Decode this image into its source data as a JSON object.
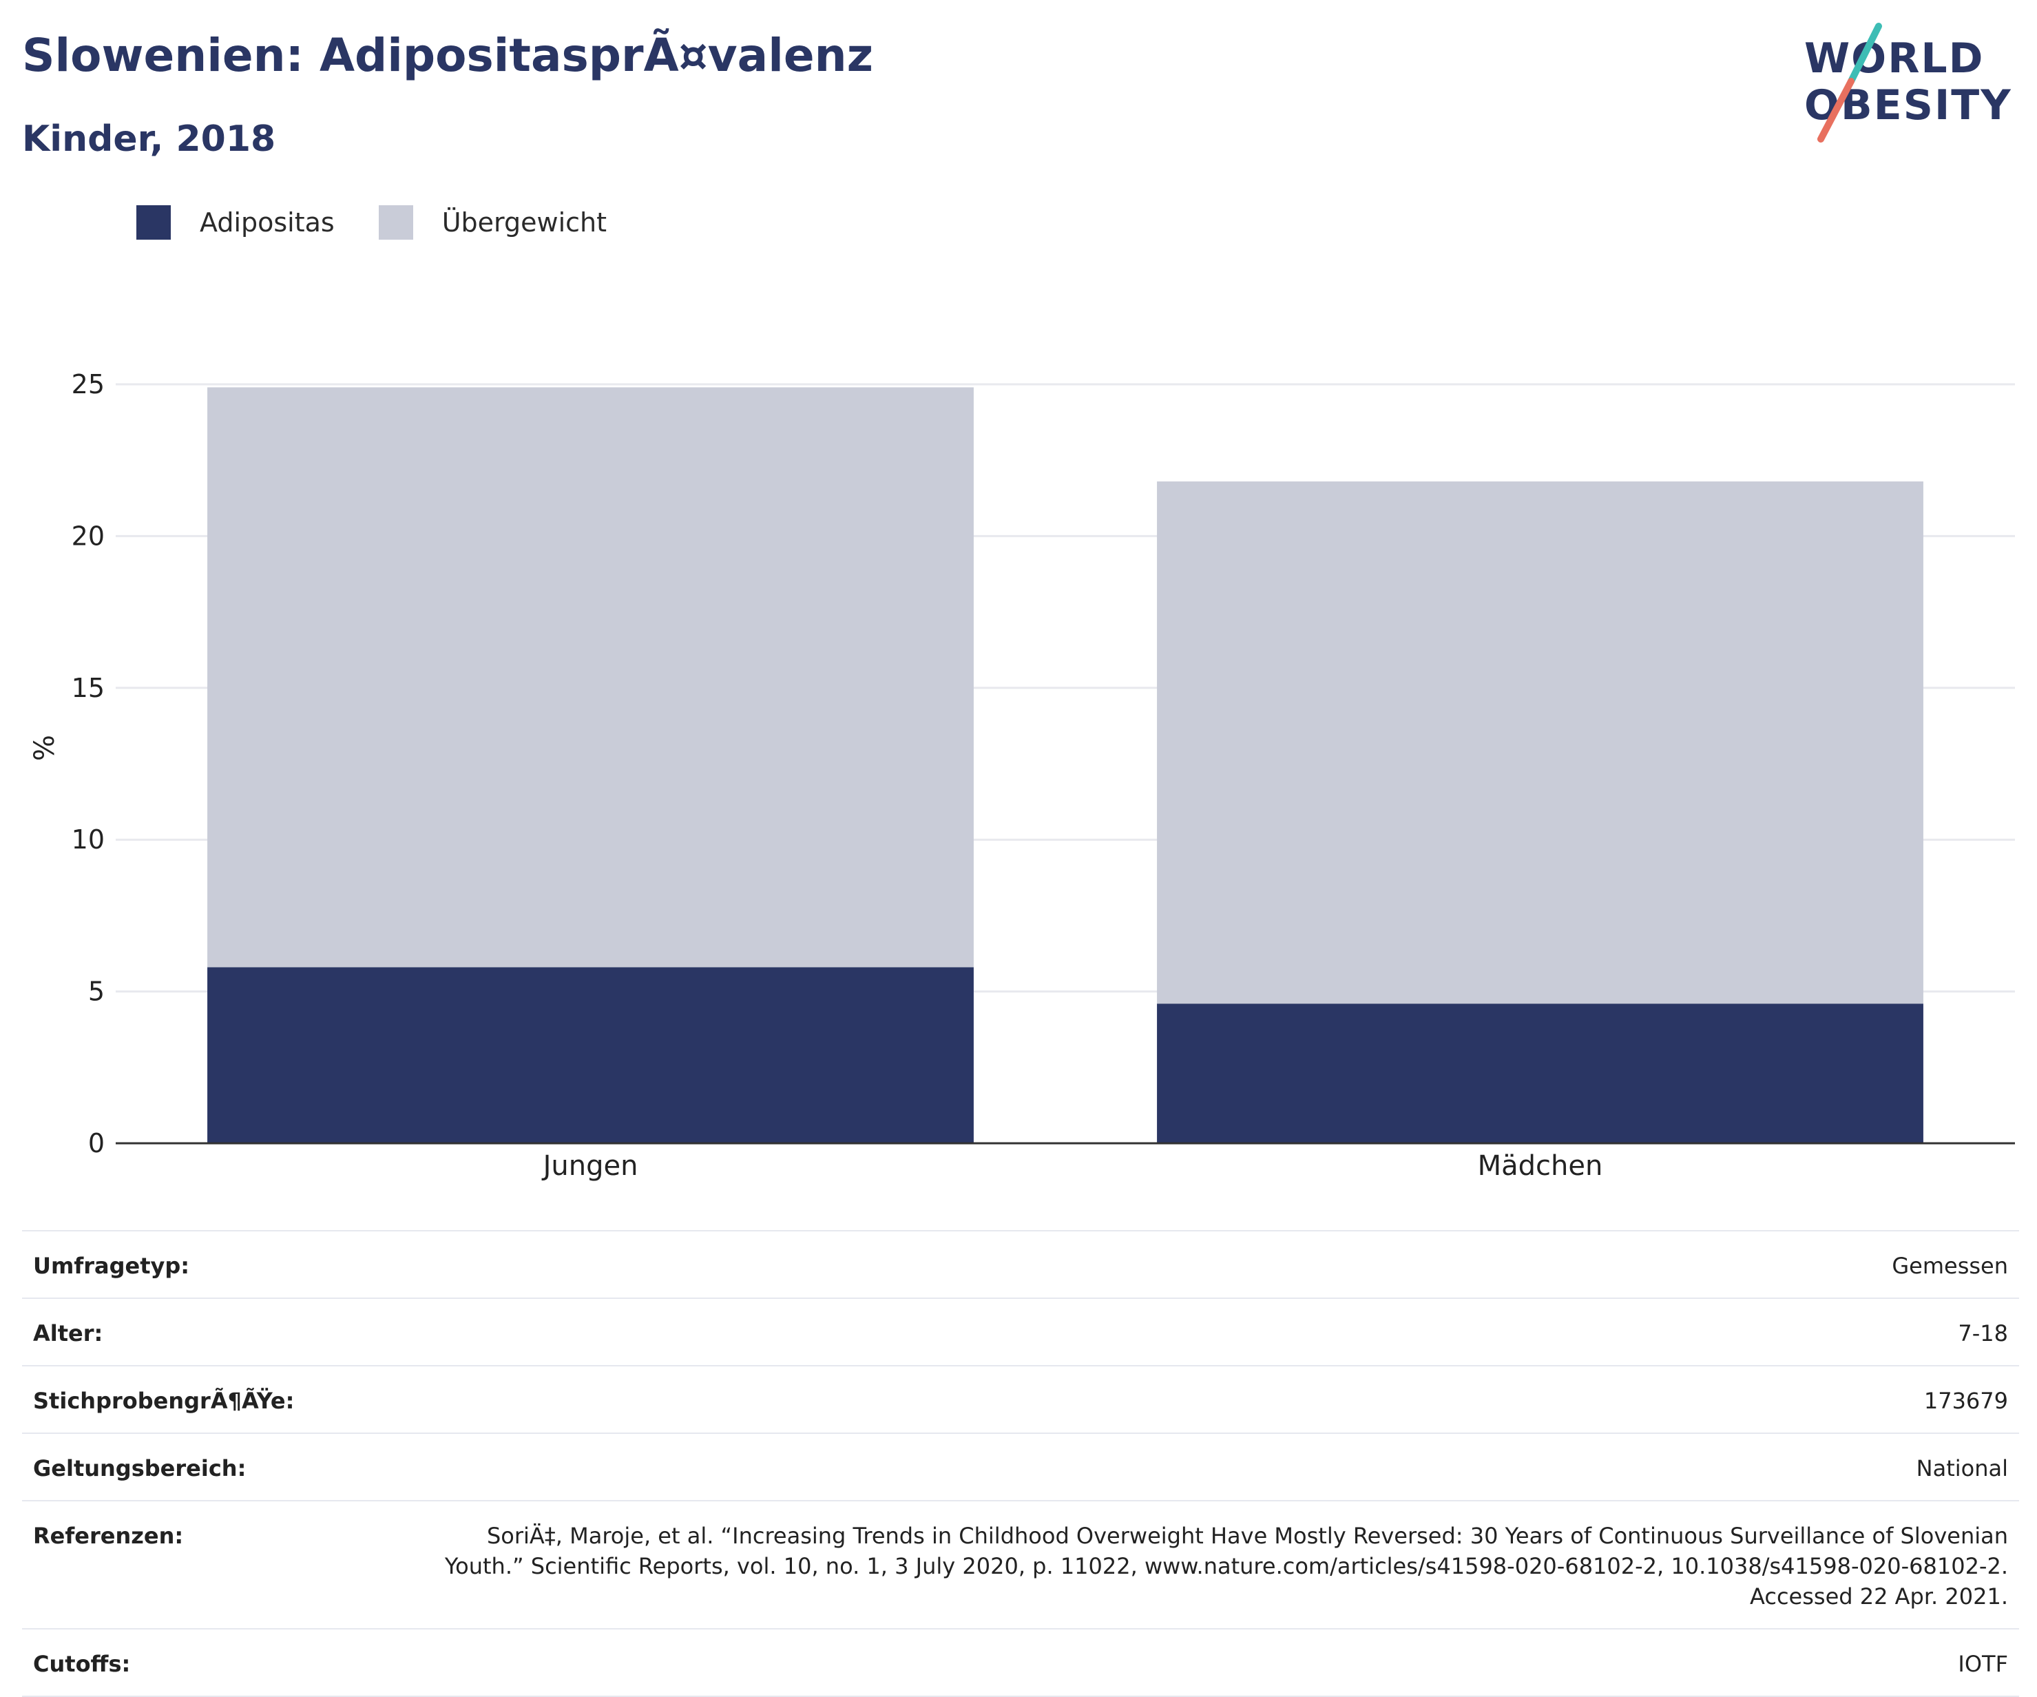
{
  "header": {
    "title": "Slowenien: AdipositasprÃ¤valenz",
    "subtitle": "Kinder, 2018"
  },
  "logo": {
    "line1": "WORLD",
    "line2": "OBESITY",
    "colors": {
      "teal": "#3dbdb5",
      "coral": "#e8705f"
    }
  },
  "colors": {
    "adipositas": "#2a3664",
    "uebergewicht": "#c9ccd8",
    "grid": "#e8e9ee",
    "axis": "#333333"
  },
  "chart_data": {
    "type": "bar",
    "stacked": true,
    "categories": [
      "Jungen",
      "Mädchen"
    ],
    "series": [
      {
        "name": "Adipositas",
        "values": [
          5.8,
          4.6
        ]
      },
      {
        "name": "Übergewicht",
        "values": [
          19.1,
          17.2
        ]
      }
    ],
    "totals": [
      24.9,
      21.8
    ],
    "ylabel": "%",
    "xlabel": "",
    "ylim": [
      0,
      25
    ],
    "yticks": [
      0,
      5,
      10,
      15,
      20,
      25
    ],
    "grid": true,
    "legend": "top-left"
  },
  "table": {
    "rows": [
      {
        "label": "Umfragetyp:",
        "value": "Gemessen"
      },
      {
        "label": "Alter:",
        "value": "7-18"
      },
      {
        "label": "StichprobengrÃ¶ÃŸe:",
        "value": "173679"
      },
      {
        "label": "Geltungsbereich:",
        "value": "National"
      },
      {
        "label": "Referenzen:",
        "value": "SoriÄ‡, Maroje, et al. “Increasing Trends in Childhood Overweight Have Mostly Reversed: 30 Years of Continuous Surveillance of Slovenian Youth.” Scientific Reports, vol. 10, no. 1, 3 July 2020, p. 11022, www.nature.com/articles/s41598-020-68102-2, 10.1038/s41598-020-68102-2. Accessed 22 Apr. 2021."
      },
      {
        "label": "Cutoffs:",
        "value": "IOTF"
      }
    ]
  }
}
